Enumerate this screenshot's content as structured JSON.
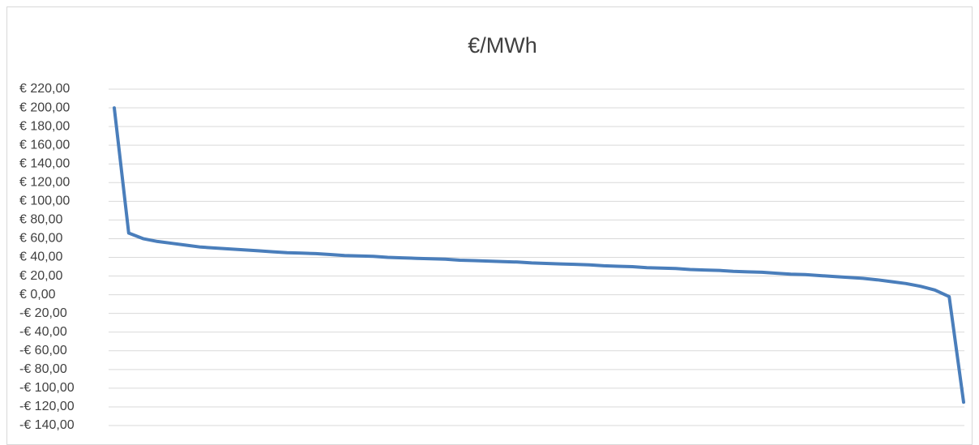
{
  "chart_data": {
    "type": "line",
    "title": "€/MWh",
    "series": [
      {
        "color": "#4a7ebb",
        "values": [
          200,
          66,
          60,
          57,
          55,
          53,
          51,
          50,
          49,
          48,
          47,
          46,
          45,
          44.5,
          44,
          43,
          42,
          41.5,
          41,
          40,
          39.5,
          39,
          38.5,
          38,
          37,
          36.5,
          36,
          35.5,
          35,
          34,
          33.5,
          33,
          32.5,
          32,
          31,
          30.5,
          30,
          29,
          28.5,
          28,
          27,
          26.5,
          26,
          25,
          24.5,
          24,
          23,
          22,
          21.5,
          20.5,
          19.5,
          18.5,
          17.5,
          16,
          14,
          12,
          9,
          5,
          -2,
          -115
        ]
      }
    ],
    "ylim": [
      -140,
      220
    ],
    "yticks": [
      {
        "value": 220,
        "label": "€ 220,00"
      },
      {
        "value": 200,
        "label": "€ 200,00"
      },
      {
        "value": 180,
        "label": "€ 180,00"
      },
      {
        "value": 160,
        "label": "€ 160,00"
      },
      {
        "value": 140,
        "label": "€ 140,00"
      },
      {
        "value": 120,
        "label": "€ 120,00"
      },
      {
        "value": 100,
        "label": "€ 100,00"
      },
      {
        "value": 80,
        "label": "€ 80,00"
      },
      {
        "value": 60,
        "label": "€ 60,00"
      },
      {
        "value": 40,
        "label": "€ 40,00"
      },
      {
        "value": 20,
        "label": "€ 20,00"
      },
      {
        "value": 0,
        "label": "€ 0,00"
      },
      {
        "value": -20,
        "label": "-€ 20,00"
      },
      {
        "value": -40,
        "label": "-€ 40,00"
      },
      {
        "value": -60,
        "label": "-€ 60,00"
      },
      {
        "value": -80,
        "label": "-€ 80,00"
      },
      {
        "value": -100,
        "label": "-€ 100,00"
      },
      {
        "value": -120,
        "label": "-€ 120,00"
      },
      {
        "value": -140,
        "label": "-€ 140,00"
      }
    ],
    "grid": true
  }
}
